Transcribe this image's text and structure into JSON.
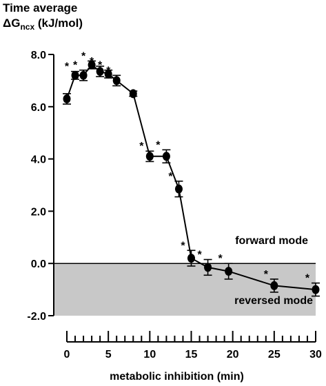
{
  "chart_data": {
    "type": "line",
    "ylabel_line1": "Time average",
    "ylabel_delta": "ΔG",
    "ylabel_sub": "ncx",
    "ylabel_unit": " (kJ/mol)",
    "xlabel": "metabolic inhibition (min)",
    "xlim": [
      0,
      30
    ],
    "ylim": [
      -2,
      8
    ],
    "xticks": [
      0,
      5,
      10,
      15,
      20,
      25,
      30
    ],
    "yticks": [
      -2.0,
      0.0,
      2.0,
      4.0,
      6.0,
      8.0
    ],
    "ytick_labels": [
      "-2.0",
      "0.0",
      "2.0",
      "4.0",
      "6.0",
      "8.0"
    ],
    "x": [
      0,
      1,
      2,
      3,
      4,
      5,
      6,
      8,
      10,
      12,
      13.5,
      15,
      17,
      19.5,
      25,
      30
    ],
    "y": [
      6.3,
      7.2,
      7.2,
      7.6,
      7.35,
      7.25,
      7.0,
      6.5,
      4.1,
      4.1,
      2.85,
      0.2,
      -0.15,
      -0.3,
      -0.85,
      -1.0
    ],
    "err": [
      0.2,
      0.15,
      0.2,
      0.15,
      0.2,
      0.15,
      0.2,
      0.1,
      0.2,
      0.25,
      0.3,
      0.3,
      0.3,
      0.3,
      0.25,
      0.25
    ],
    "significant": [
      false,
      true,
      true,
      true,
      true,
      true,
      true,
      false,
      true,
      true,
      true,
      true,
      true,
      true,
      true,
      true
    ],
    "significance_symbol": "*",
    "annotations": {
      "forward": "forward mode",
      "reversed": "reversed mode"
    },
    "shaded_region": {
      "y_from": -2,
      "y_to": 0,
      "color": "#c8c8c8"
    },
    "marker_color": "#000000",
    "line_color": "#000000"
  }
}
